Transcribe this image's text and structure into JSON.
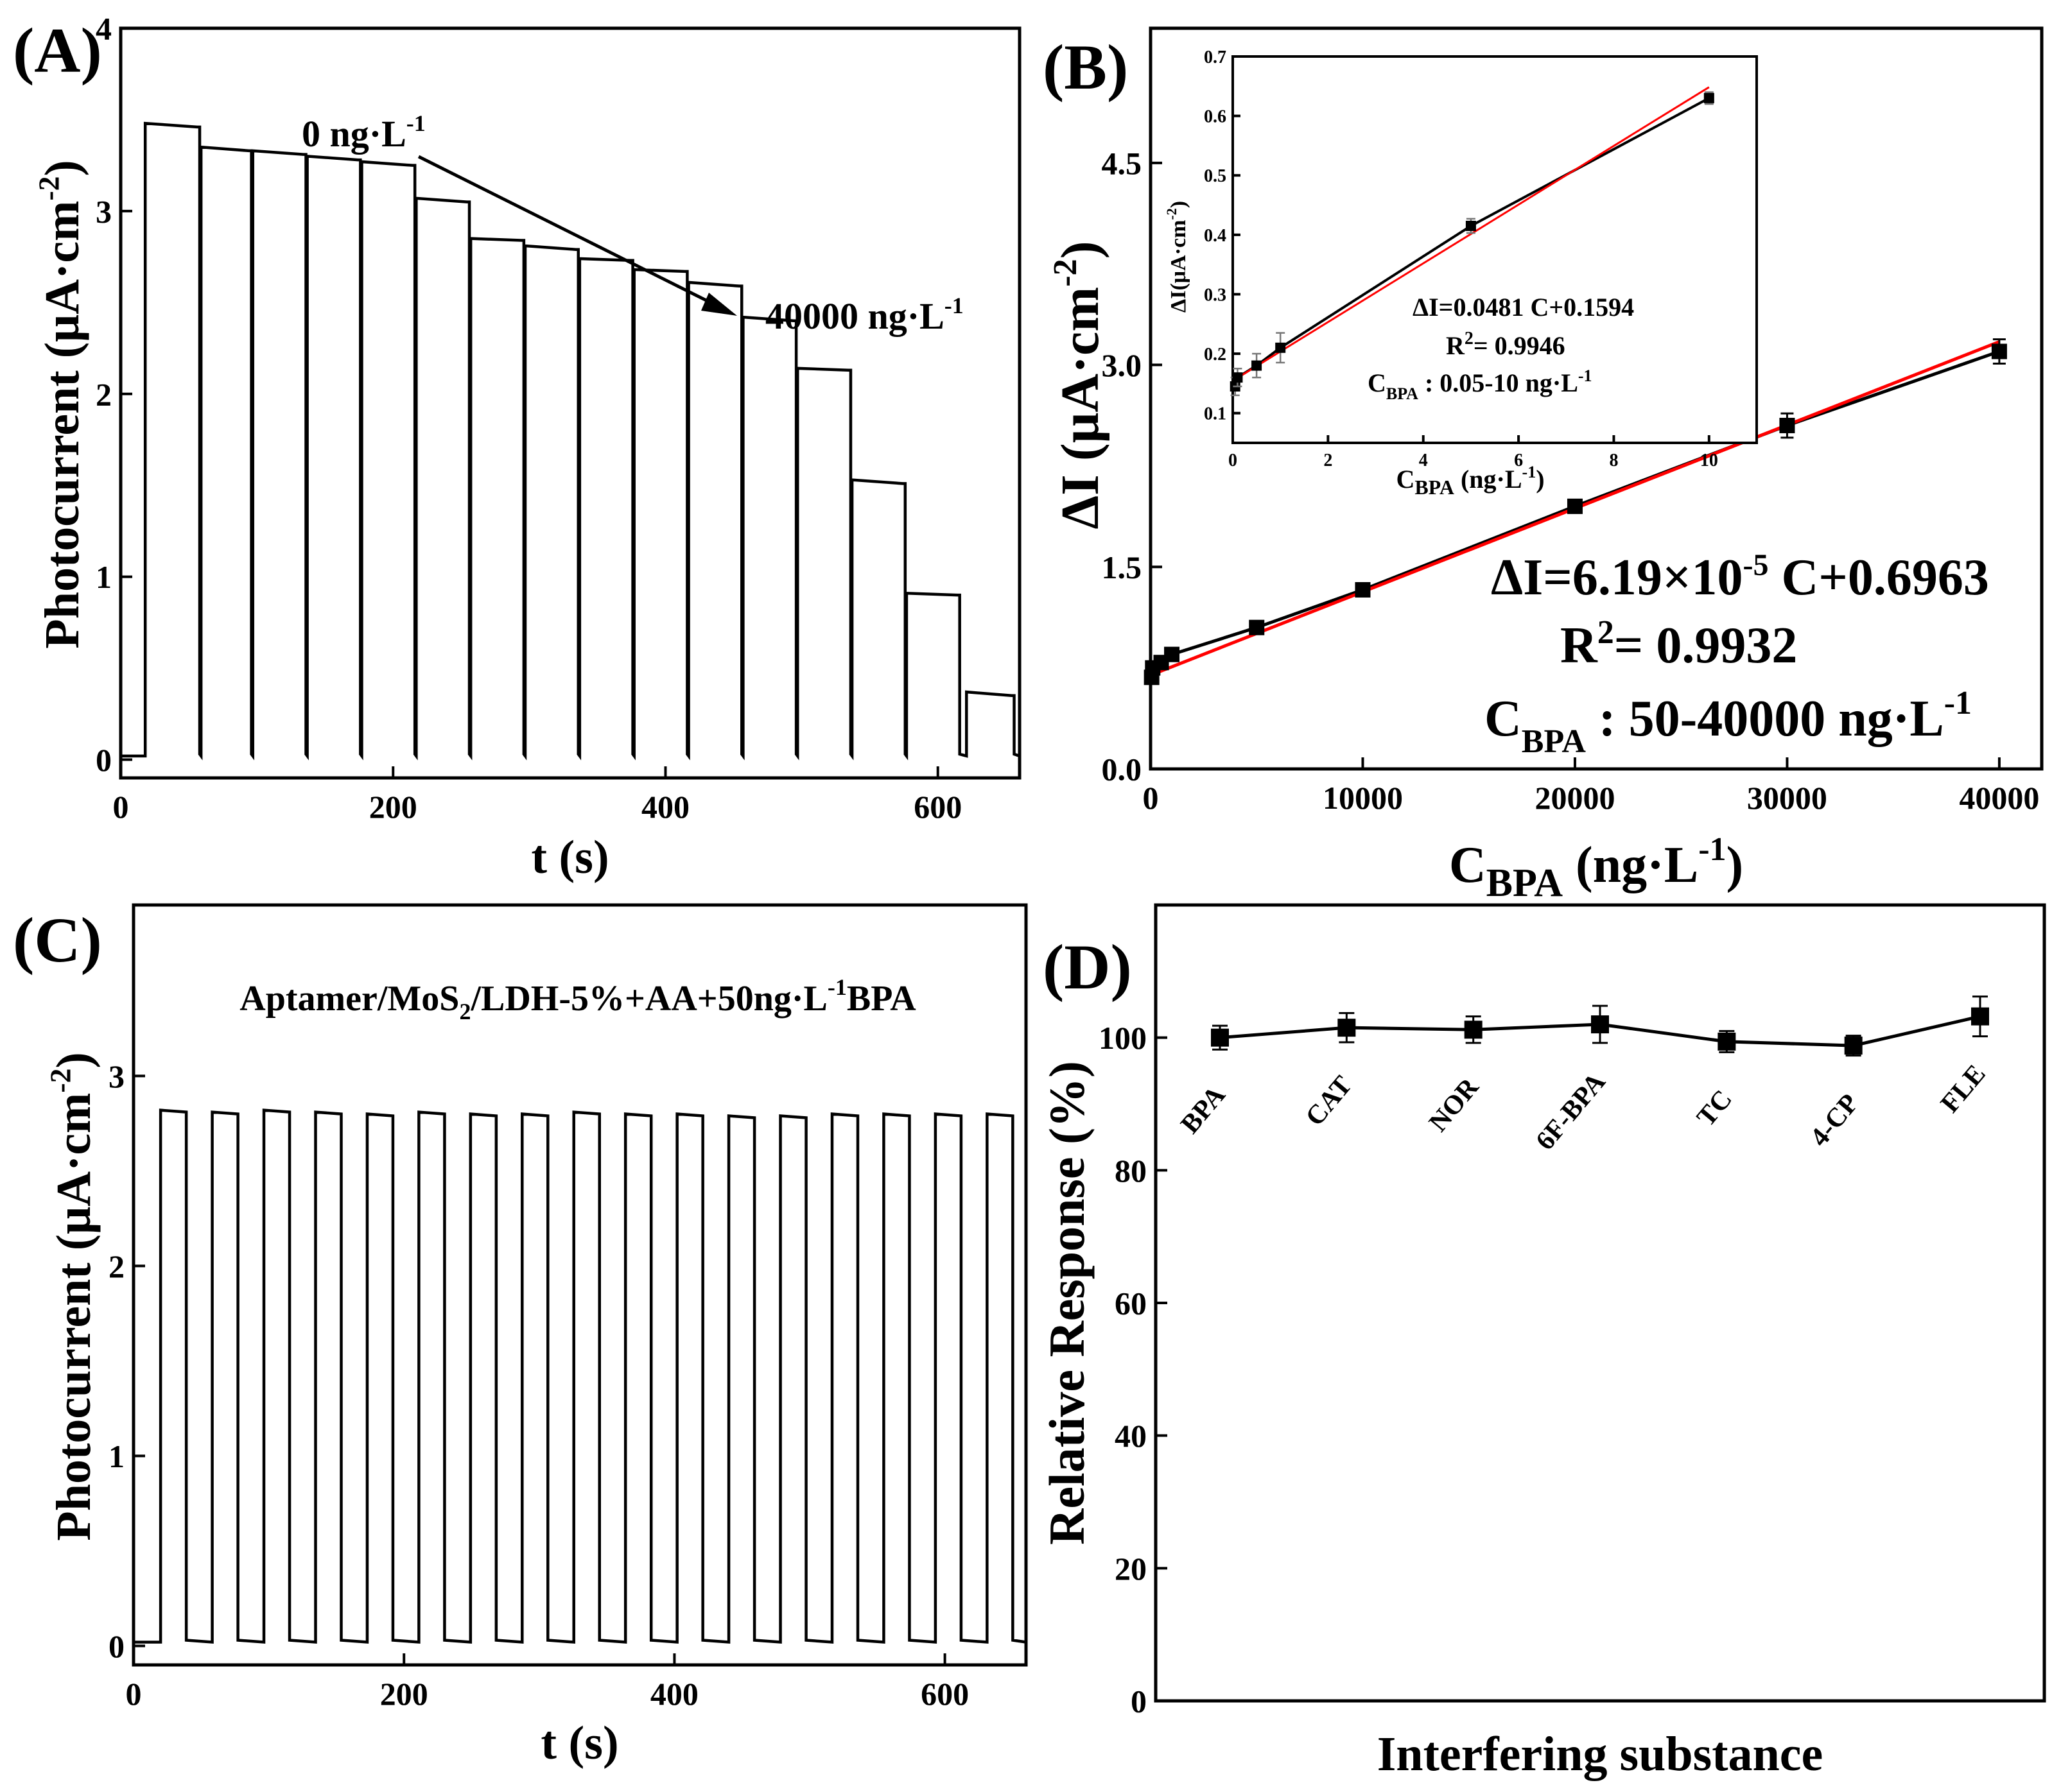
{
  "chart_data": [
    {
      "id": "A",
      "type": "line",
      "panel_label": "(A)",
      "xlabel": "t (s)",
      "ylabel": "Photocurrent (μA·cm",
      "ylabel_sup": "-2",
      "ylabel_close": ")",
      "xlim": [
        0,
        660
      ],
      "ylim": [
        -0.1,
        4.0
      ],
      "xticks": [
        0,
        200,
        400,
        600
      ],
      "yticks": [
        0,
        1,
        2,
        3,
        4
      ],
      "baseline": 0.02,
      "pulses": [
        {
          "on": 18,
          "off": 58,
          "peak": 3.48,
          "plateau": 3.46
        },
        {
          "on": 59,
          "off": 96,
          "peak": 3.35,
          "plateau": 3.33
        },
        {
          "on": 97,
          "off": 136,
          "peak": 3.33,
          "plateau": 3.31
        },
        {
          "on": 137,
          "off": 176,
          "peak": 3.3,
          "plateau": 3.28
        },
        {
          "on": 177,
          "off": 216,
          "peak": 3.27,
          "plateau": 3.25
        },
        {
          "on": 217,
          "off": 256,
          "peak": 3.07,
          "plateau": 3.05
        },
        {
          "on": 257,
          "off": 296,
          "peak": 2.85,
          "plateau": 2.84
        },
        {
          "on": 297,
          "off": 336,
          "peak": 2.81,
          "plateau": 2.79
        },
        {
          "on": 337,
          "off": 376,
          "peak": 2.74,
          "plateau": 2.73
        },
        {
          "on": 377,
          "off": 416,
          "peak": 2.68,
          "plateau": 2.67
        },
        {
          "on": 417,
          "off": 456,
          "peak": 2.61,
          "plateau": 2.59
        },
        {
          "on": 457,
          "off": 496,
          "peak": 2.42,
          "plateau": 2.4
        },
        {
          "on": 497,
          "off": 536,
          "peak": 2.14,
          "plateau": 2.13
        },
        {
          "on": 537,
          "off": 576,
          "peak": 1.53,
          "plateau": 1.51
        },
        {
          "on": 577,
          "off": 616,
          "peak": 0.91,
          "plateau": 0.9
        },
        {
          "on": 621,
          "off": 656,
          "peak": 0.37,
          "plateau": 0.35
        }
      ],
      "annotations": [
        {
          "text": "0 ng·L",
          "sup": "-1"
        },
        {
          "text": "40000 ng·L",
          "sup": "-1"
        }
      ]
    },
    {
      "id": "B",
      "type": "scatter",
      "panel_label": "(B)",
      "xlabel": "C",
      "xlabel_sub": "BPA",
      "xlabel_rest": " (ng·L",
      "xlabel_sup": "-1",
      "xlabel_close": ")",
      "ylabel": "ΔI (μA·cm",
      "ylabel_sup": "-2",
      "ylabel_close": ")",
      "xlim": [
        0,
        42000
      ],
      "ylim": [
        0.0,
        5.5
      ],
      "xticks": [
        0,
        10000,
        20000,
        30000,
        40000
      ],
      "yticks": [
        0.0,
        1.5,
        3.0,
        4.5
      ],
      "ytick_labels": [
        "0.0",
        "1.5",
        "3.0",
        "4.5"
      ],
      "series": [
        {
          "name": "data",
          "x": [
            50,
            100,
            500,
            1000,
            5000,
            10000,
            20000,
            30000,
            40000
          ],
          "y": [
            0.68,
            0.75,
            0.79,
            0.85,
            1.05,
            1.33,
            1.95,
            2.55,
            3.1
          ],
          "err": [
            0.04,
            0.04,
            0.03,
            0.04,
            0.04,
            0.04,
            0.04,
            0.09,
            0.09
          ]
        }
      ],
      "fit_line": {
        "slope": 6.19e-05,
        "intercept": 0.6963,
        "color": "#ff0000"
      },
      "connect_color": "#000000",
      "equation": {
        "lhs": "ΔI=6.19×10",
        "exp": "-5",
        "rhs": " C+0.6963"
      },
      "r2": {
        "label": "R",
        "sup": "2",
        "value": "= 0.9932"
      },
      "range": {
        "c": "C",
        "sub": "BPA",
        "text": "  :  50-40000 ng·L",
        "sup": "-1"
      },
      "inset": {
        "xlim": [
          0,
          11
        ],
        "ylim": [
          0.05,
          0.7
        ],
        "xticks": [
          0,
          2,
          4,
          6,
          8,
          10
        ],
        "yticks": [
          0.1,
          0.2,
          0.3,
          0.4,
          0.5,
          0.6,
          0.7
        ],
        "ytick_labels": [
          "0.1",
          "0.2",
          "0.3",
          "0.4",
          "0.5",
          "0.6",
          "0.7"
        ],
        "x": [
          0.05,
          0.1,
          0.5,
          1,
          5,
          10
        ],
        "y": [
          0.145,
          0.16,
          0.18,
          0.21,
          0.415,
          0.63
        ],
        "err": [
          0.015,
          0.015,
          0.02,
          0.025,
          0.012,
          0.01
        ],
        "fit_line": {
          "slope": 0.0481,
          "intercept": 0.1594
        },
        "xlabel": "C",
        "xlabel_sub": "BPA",
        "xlabel_rest": " (ng·L",
        "xlabel_sup": "-1",
        "xlabel_close": ")",
        "ylabel": "ΔI(μA·cm",
        "ylabel_sup": "-2",
        "ylabel_close": ")",
        "equation": "ΔI=0.0481 C+0.1594",
        "r2": {
          "label": "R",
          "sup": "2",
          "value": "= 0.9946"
        },
        "range": {
          "c": "C",
          "sub": "BPA",
          "text": "  :  0.05-10 ng·L",
          "sup": "-1"
        }
      }
    },
    {
      "id": "C",
      "type": "line",
      "panel_label": "(C)",
      "xlabel": "t (s)",
      "ylabel": "Photocurrent (μA·cm",
      "ylabel_sup": "-2",
      "ylabel_close": ")",
      "xlim": [
        0,
        660
      ],
      "ylim": [
        -0.1,
        3.9
      ],
      "xticks": [
        0,
        200,
        400,
        600
      ],
      "yticks": [
        0,
        1,
        2,
        3
      ],
      "baseline": 0.02,
      "pulse_period": 38.2,
      "pulse_start": 20,
      "pulse_width": 19,
      "pulse_heights": [
        2.82,
        2.81,
        2.82,
        2.81,
        2.8,
        2.81,
        2.8,
        2.8,
        2.81,
        2.8,
        2.8,
        2.79,
        2.79,
        2.8,
        2.8,
        2.8,
        2.8
      ],
      "title": {
        "text": "Aptamer/MoS",
        "sub": "2",
        "mid": "/LDH-5%+AA+50ng·L",
        "sup": "-1",
        "end": "BPA"
      }
    },
    {
      "id": "D",
      "type": "line",
      "panel_label": "(D)",
      "xlabel": "Interfering substance",
      "ylabel": "Relative Response (%)",
      "ylim": [
        0,
        120
      ],
      "yticks": [
        0,
        20,
        40,
        60,
        80,
        100
      ],
      "categories": [
        "BPA",
        "CAT",
        "NOR",
        "6F-BPA",
        "TC",
        "4-CP",
        "FLE"
      ],
      "values": [
        100.0,
        101.5,
        101.2,
        102.0,
        99.4,
        98.8,
        103.2
      ],
      "errors": [
        1.8,
        2.2,
        2.0,
        2.8,
        1.6,
        1.5,
        3.0
      ]
    }
  ]
}
